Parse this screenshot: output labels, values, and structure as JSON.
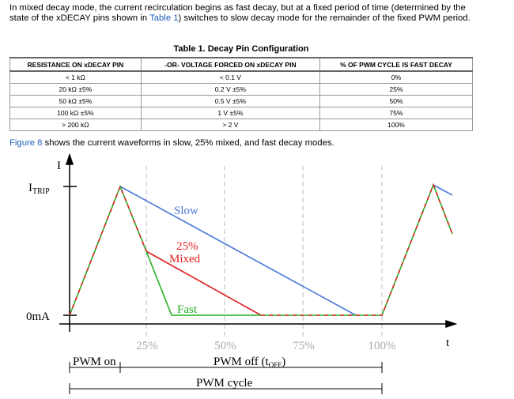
{
  "paragraph_1": {
    "before": "In mixed decay mode, the current recirculation begins as fast decay, but at a fixed period of time (determined by the state of the xDECAY pins shown in ",
    "link": "Table 1",
    "after": ") switches to slow decay mode for the remainder of the fixed PWM period."
  },
  "table": {
    "title": "Table 1. Decay Pin Configuration",
    "headers": [
      "RESISTANCE ON xDECAY PIN",
      "-OR- VOLTAGE FORCED ON xDECAY PIN",
      "% OF PWM CYCLE IS FAST DECAY"
    ],
    "rows": [
      [
        "< 1 kΩ",
        "< 0.1 V",
        "0%"
      ],
      [
        "20 kΩ ±5%",
        "0.2 V ±5%",
        "25%"
      ],
      [
        "50 kΩ ±5%",
        "0.5 V ±5%",
        "50%"
      ],
      [
        "100 kΩ ±5%",
        "1 V ±5%",
        "75%"
      ],
      [
        "> 200 kΩ",
        "> 2 V",
        "100%"
      ]
    ]
  },
  "paragraph_2": {
    "link": "Figure 8",
    "after": " shows the current waveforms in slow, 25% mixed, and fast decay modes."
  },
  "figure": {
    "y_axis_label": "I",
    "i_trip": {
      "main": "I",
      "sub": "TRIP"
    },
    "zero_label": "0mA",
    "x_axis_label": "t",
    "curves": {
      "slow": "Slow",
      "mixed_top": "25%",
      "mixed_bottom": "Mixed",
      "fast": "Fast"
    },
    "ticks": [
      "25%",
      "50%",
      "75%",
      "100%"
    ],
    "pwm_on": "PWM on",
    "pwm_off": {
      "main": "PWM off (t",
      "sub": "OFF",
      "end": ")"
    },
    "pwm_cycle": "PWM cycle"
  }
}
